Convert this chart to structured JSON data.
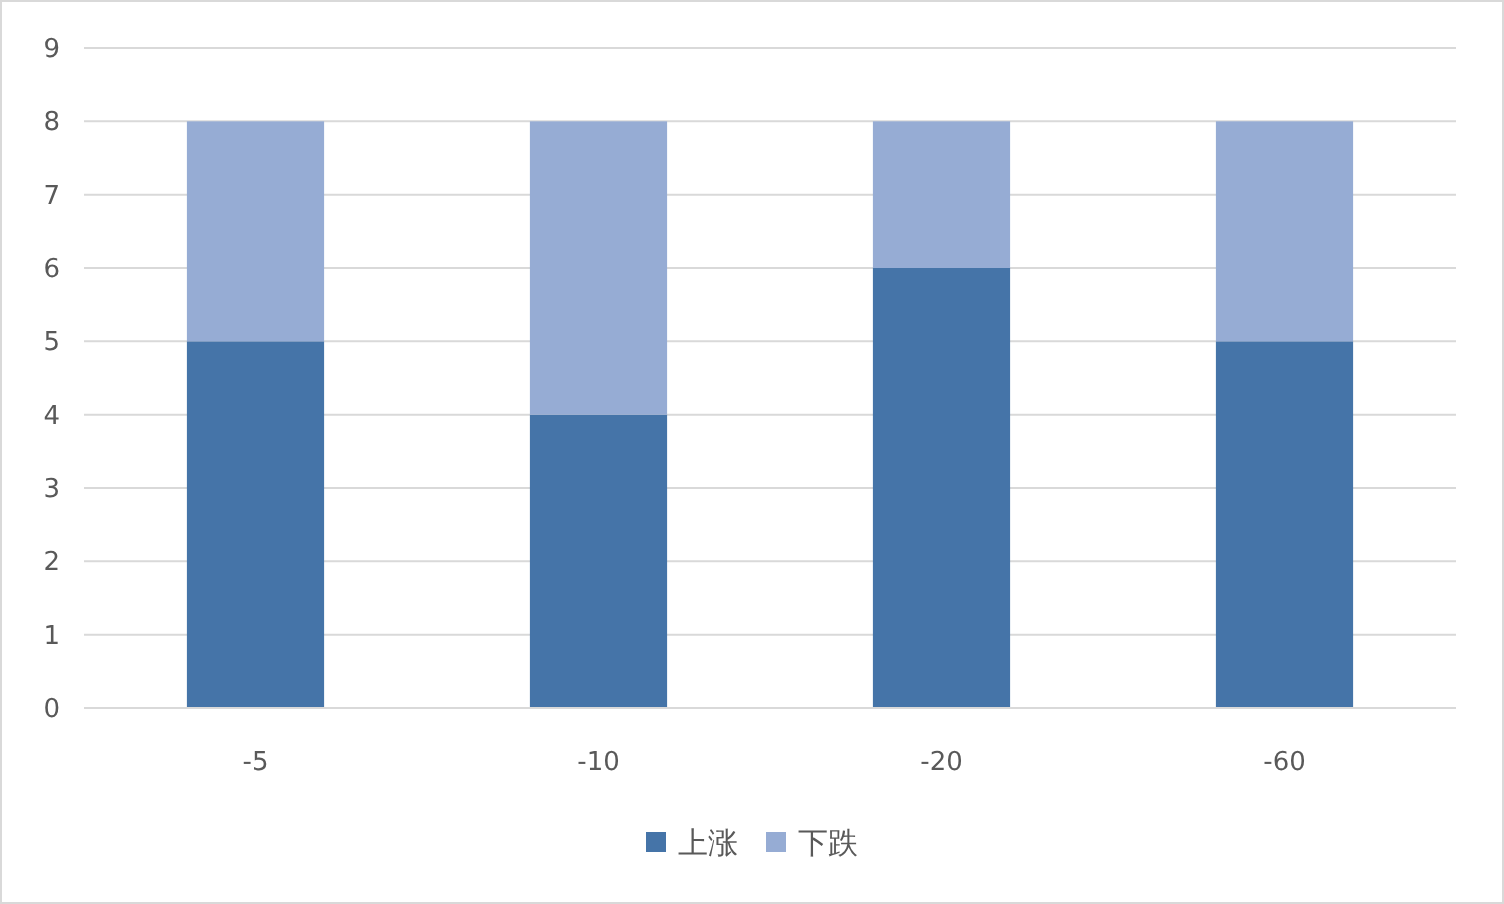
{
  "chart_data": {
    "type": "bar",
    "stacked": true,
    "categories": [
      "-5",
      "-10",
      "-20",
      "-60"
    ],
    "series": [
      {
        "name": "上涨",
        "color": "#4574a8",
        "values": [
          5,
          4,
          6,
          5
        ]
      },
      {
        "name": "下跌",
        "color": "#96acd4",
        "values": [
          3,
          4,
          2,
          3
        ]
      }
    ],
    "ylim": [
      0,
      9
    ],
    "yticks": [
      0,
      1,
      2,
      3,
      4,
      5,
      6,
      7,
      8,
      9
    ],
    "grid": "y",
    "legend": "bottom"
  }
}
